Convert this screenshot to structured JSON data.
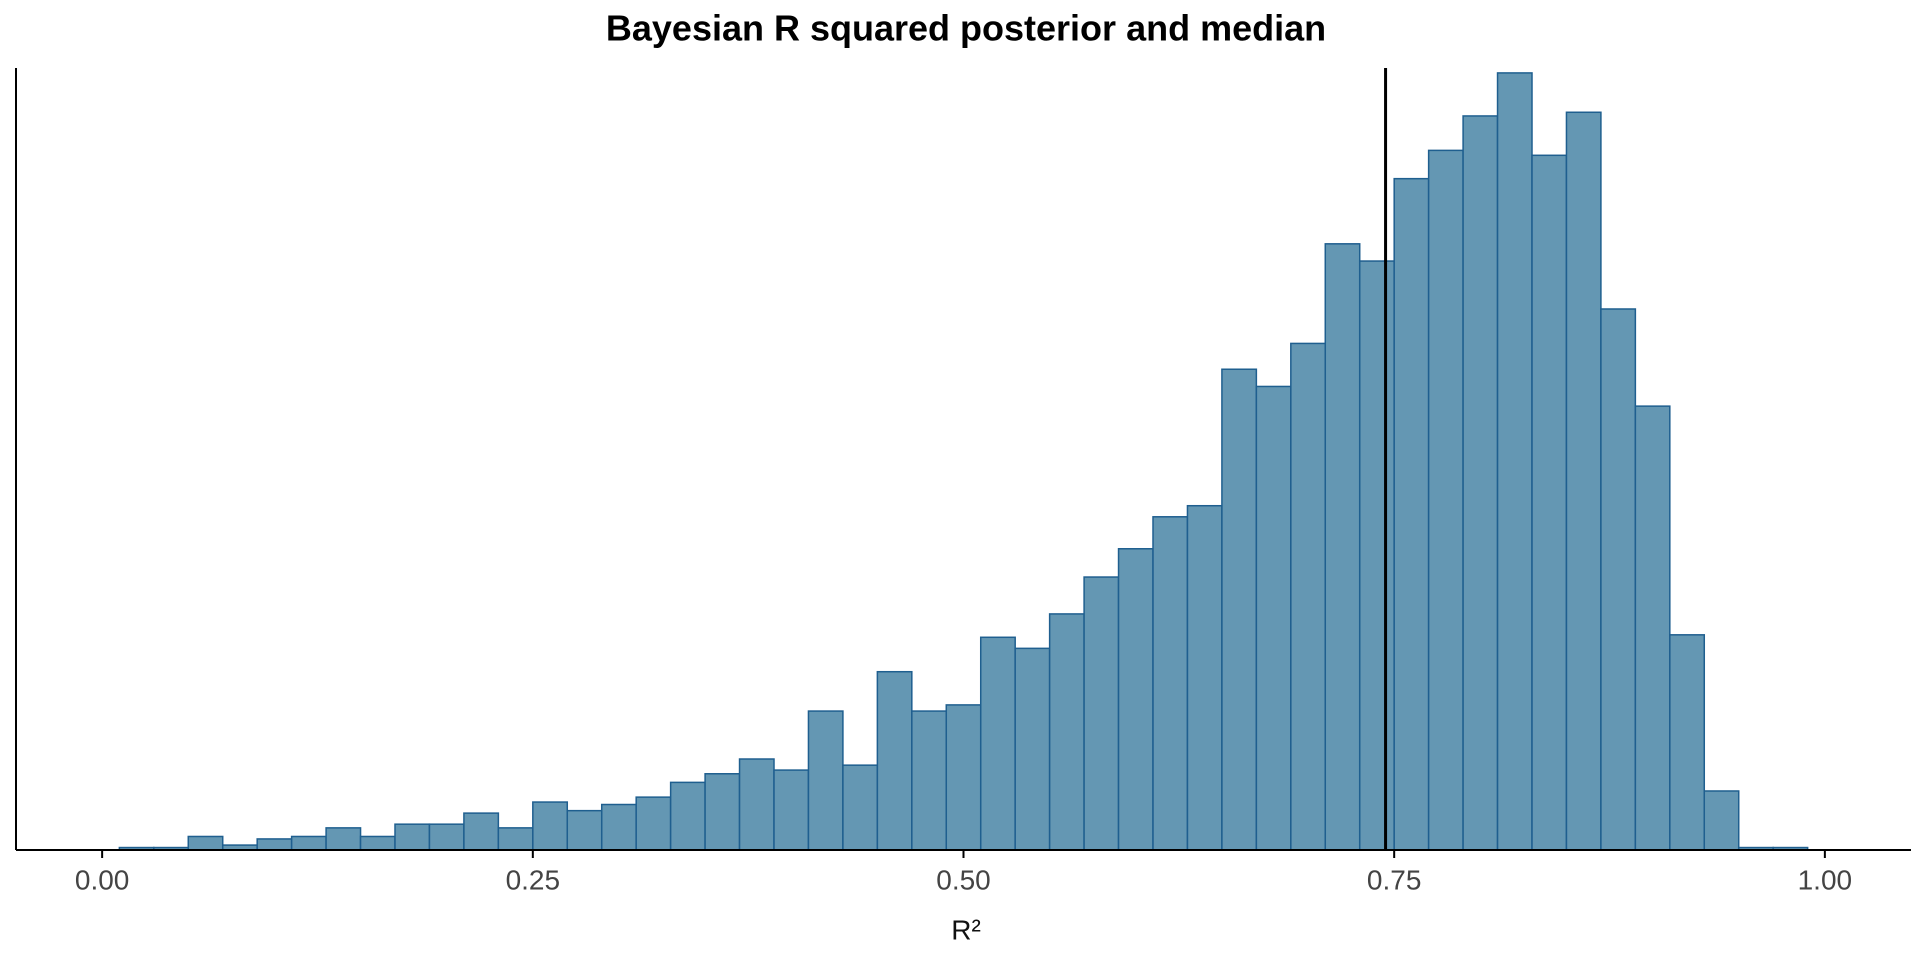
{
  "chart_data": {
    "type": "histogram",
    "title": "Bayesian R squared posterior and median",
    "xlabel": "R²",
    "bins": [
      0.01,
      0.03,
      0.05,
      0.07,
      0.09,
      0.11,
      0.13,
      0.15,
      0.17,
      0.19,
      0.21,
      0.23,
      0.25,
      0.27,
      0.29,
      0.31,
      0.33,
      0.35,
      0.37,
      0.39,
      0.41,
      0.43,
      0.45,
      0.47,
      0.49,
      0.51,
      0.53,
      0.55,
      0.57,
      0.59,
      0.61,
      0.63,
      0.65,
      0.67,
      0.69,
      0.71,
      0.73,
      0.75,
      0.77,
      0.79,
      0.81,
      0.83,
      0.85,
      0.87,
      0.89,
      0.91,
      0.93,
      0.95,
      0.97,
      0.99
    ],
    "values": [
      2,
      2,
      11,
      4,
      9,
      11,
      18,
      11,
      21,
      21,
      30,
      18,
      39,
      32,
      37,
      43,
      55,
      62,
      74,
      65,
      113,
      69,
      145,
      113,
      118,
      173,
      164,
      192,
      222,
      245,
      271,
      280,
      391,
      377,
      412,
      493,
      479,
      546,
      569,
      597,
      632,
      565,
      600,
      440,
      361,
      175,
      48,
      2,
      2
    ],
    "color": "#6497b3",
    "edgecolor": "#1f5f8f",
    "median": 0.745,
    "xlim": [
      -0.05,
      1.05
    ],
    "ylim": [
      0,
      636
    ],
    "xticks": [
      {
        "value": 0,
        "label": "0.00"
      },
      {
        "value": 0.25,
        "label": "0.25"
      },
      {
        "value": 0.5,
        "label": "0.50"
      },
      {
        "value": 0.75,
        "label": "0.75"
      },
      {
        "value": 1,
        "label": "1.00"
      }
    ]
  }
}
